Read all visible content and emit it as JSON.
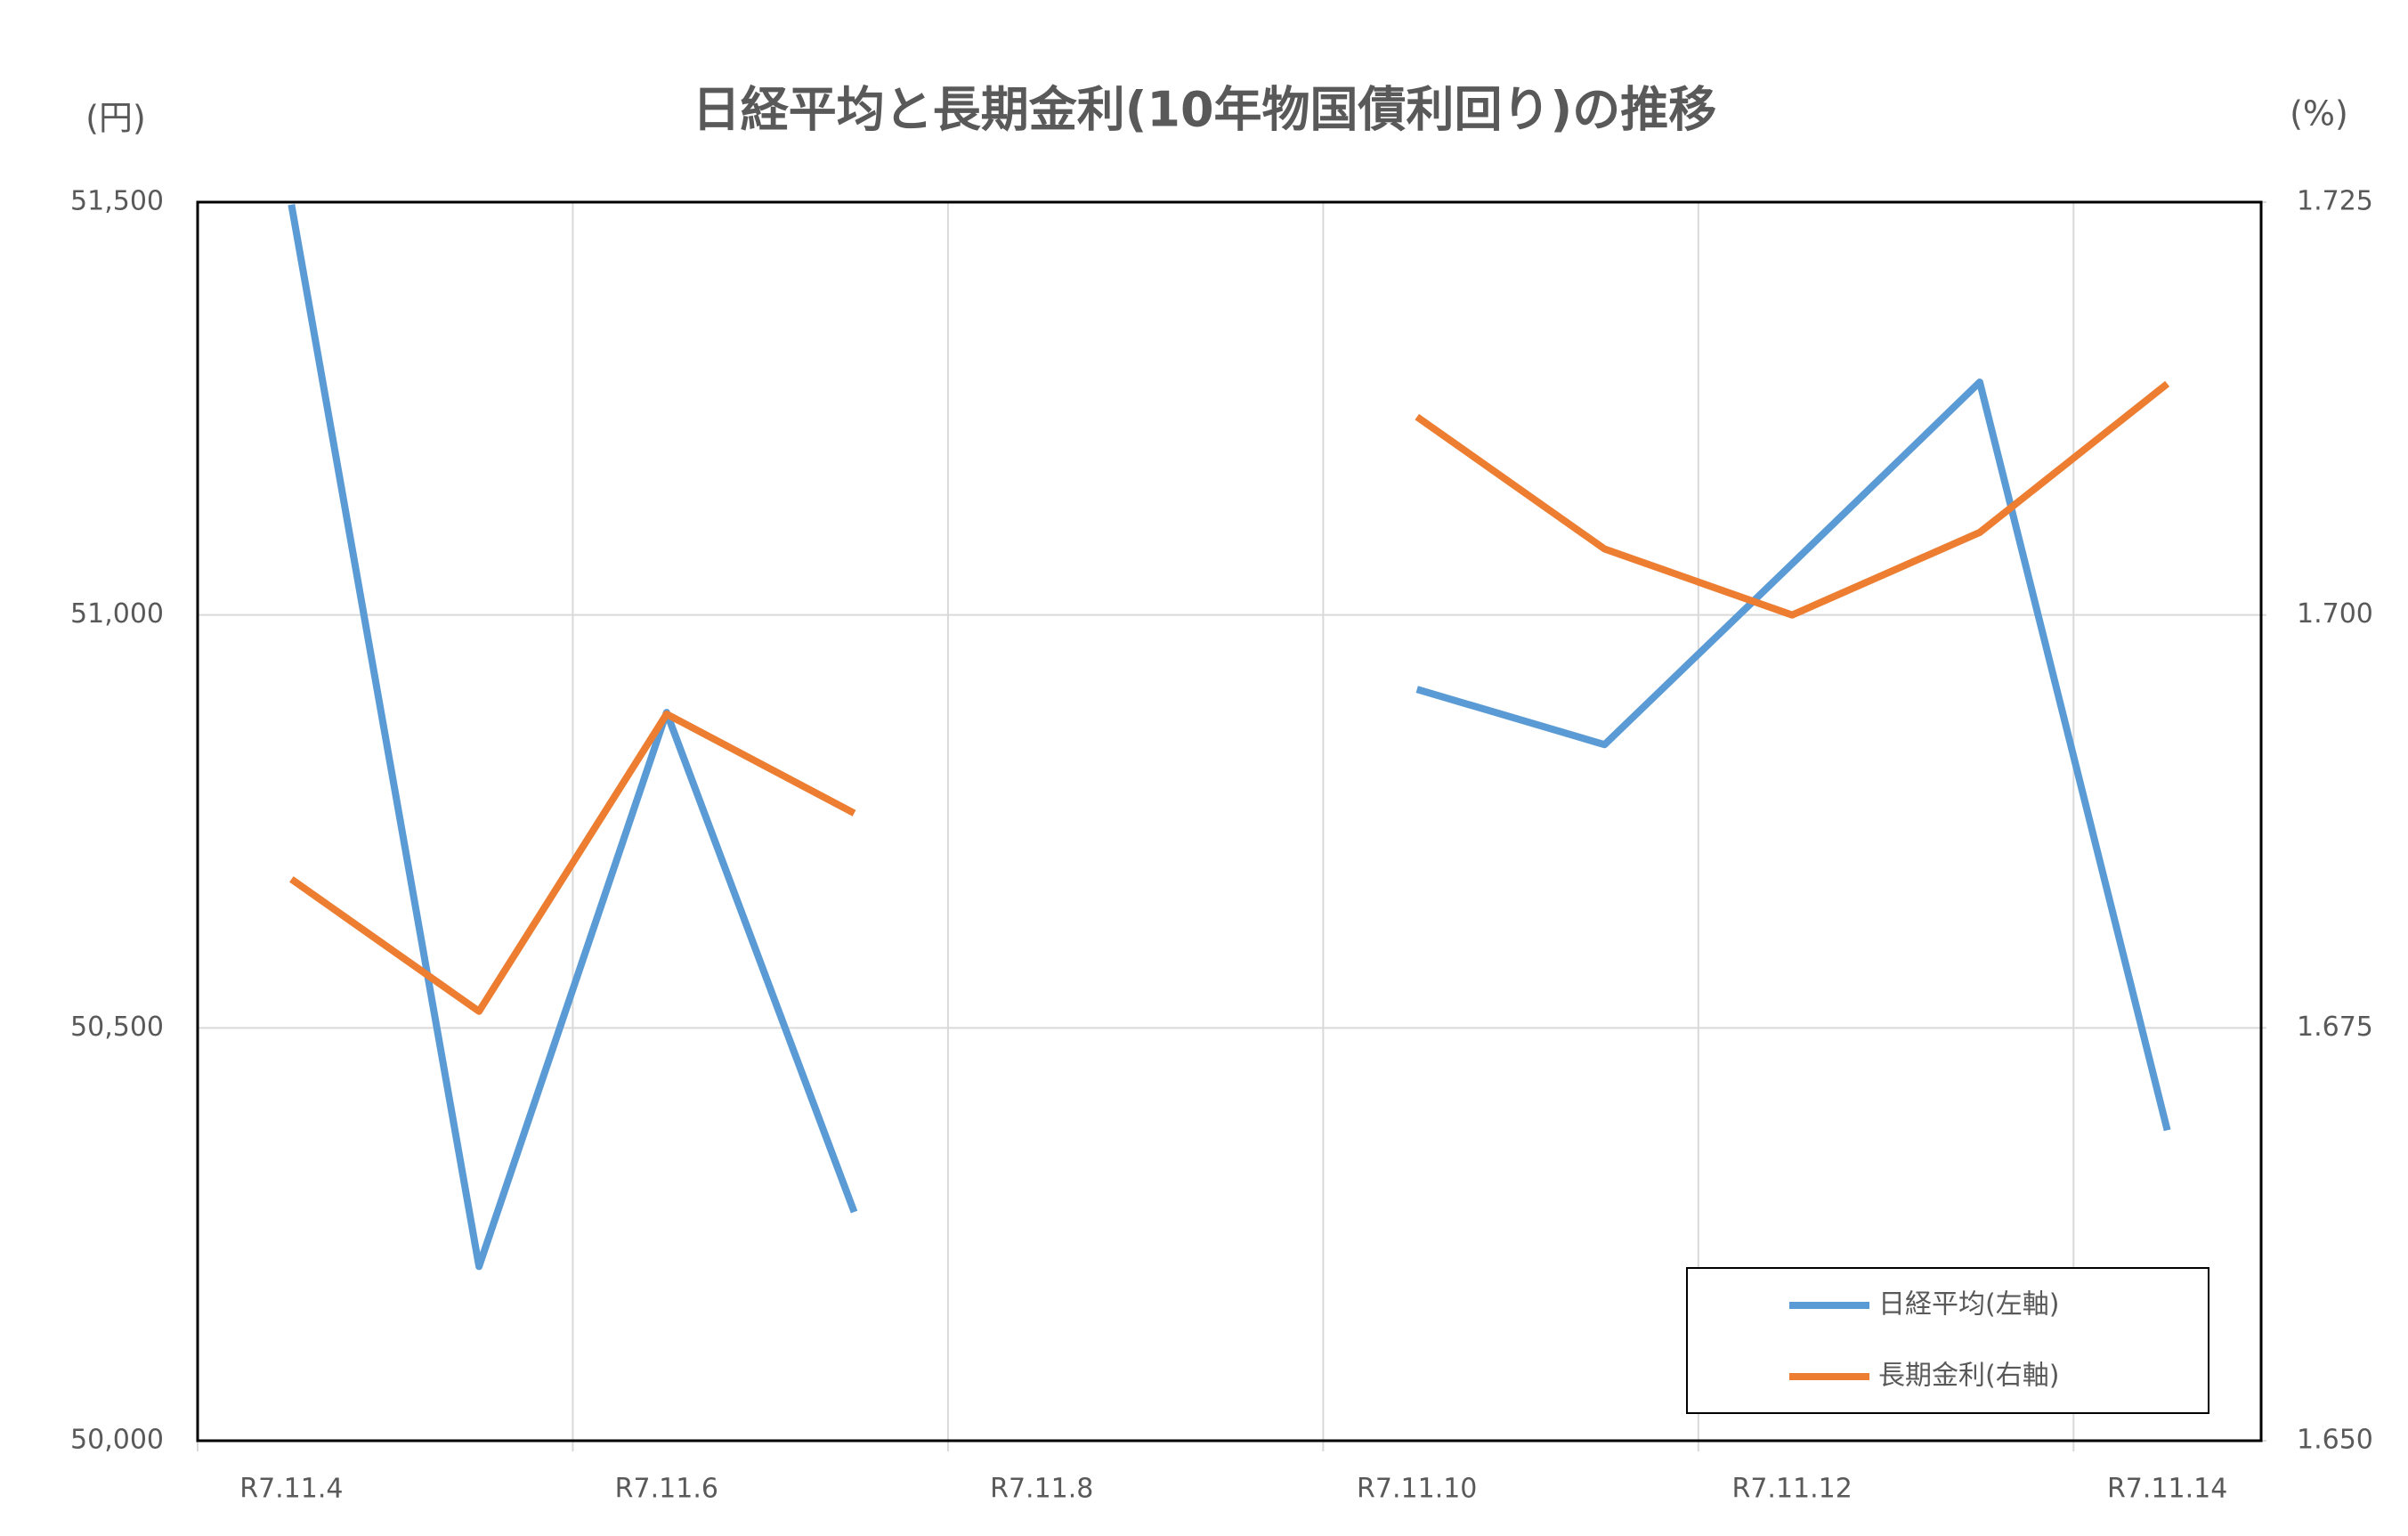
{
  "chart_data": {
    "type": "line",
    "title": "日経平均と長期金利(10年物国債利回り)の推移",
    "y_label": "(円)",
    "y2_label": "(%)",
    "categories": [
      "R7.11.4",
      null,
      "R7.11.6",
      null,
      "R7.11.8",
      null,
      "R7.11.10",
      null,
      "R7.11.12",
      null,
      "R7.11.14"
    ],
    "series": [
      {
        "name": "日経平均(左軸)",
        "color": "#5b9bd5",
        "values": [
          51497,
          50211,
          50882,
          50277,
          null,
          null,
          50910,
          50843,
          51062,
          51282,
          50376
        ]
      },
      {
        "name": "長期金利(右軸)",
        "color": "#ed7d31",
        "axis": "y2",
        "values": [
          1.684,
          1.676,
          1.694,
          1.688,
          null,
          null,
          1.712,
          1.704,
          1.7,
          1.705,
          1.714
        ]
      }
    ],
    "ylim": [
      50000,
      51500
    ],
    "yticks": [
      {
        "value": 50000,
        "label": "50,000"
      },
      {
        "value": 50500,
        "label": "50,500"
      },
      {
        "value": 51000,
        "label": "51,000"
      },
      {
        "value": 51500,
        "label": "51,500"
      }
    ],
    "y2lim": [
      1.65,
      1.725
    ],
    "y2ticks": [
      {
        "value": 1.65,
        "label": "1.650"
      },
      {
        "value": 1.675,
        "label": "1.675"
      },
      {
        "value": 1.7,
        "label": "1.700"
      },
      {
        "value": 1.725,
        "label": "1.725"
      }
    ],
    "grid": true,
    "legend": "lower right"
  }
}
